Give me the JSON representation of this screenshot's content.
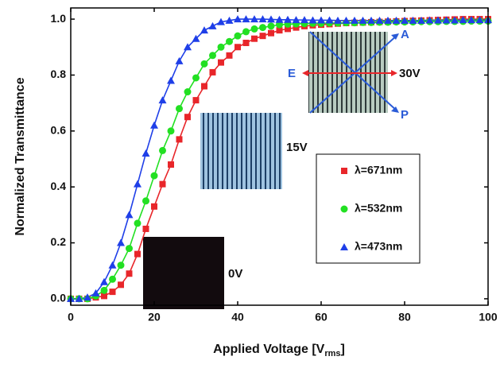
{
  "chart_data": {
    "type": "scatter",
    "x_label": {
      "main": "Applied Voltage [V",
      "sub": "rms",
      "end": "]"
    },
    "y_label": "Normalized Transmittance",
    "x": [
      0,
      2,
      4,
      6,
      8,
      10,
      12,
      14,
      16,
      18,
      20,
      22,
      24,
      26,
      28,
      30,
      32,
      34,
      36,
      38,
      40,
      42,
      44,
      46,
      48,
      50,
      52,
      54,
      56,
      58,
      60,
      62,
      64,
      66,
      68,
      70,
      72,
      74,
      76,
      78,
      80,
      82,
      84,
      86,
      88,
      90,
      92,
      94,
      96,
      98,
      100
    ],
    "series": [
      {
        "name": "λ=671nm",
        "color": "#e8262a",
        "marker": "square",
        "values": [
          0,
          0,
          0,
          0.005,
          0.01,
          0.025,
          0.05,
          0.09,
          0.16,
          0.25,
          0.33,
          0.41,
          0.48,
          0.57,
          0.65,
          0.71,
          0.76,
          0.81,
          0.845,
          0.87,
          0.9,
          0.915,
          0.93,
          0.94,
          0.95,
          0.96,
          0.965,
          0.97,
          0.975,
          0.978,
          0.98,
          0.982,
          0.984,
          0.986,
          0.987,
          0.988,
          0.989,
          0.99,
          0.991,
          0.992,
          0.993,
          0.994,
          0.995,
          0.996,
          0.997,
          0.998,
          0.999,
          1.0,
          1.0,
          1.0,
          1.0
        ]
      },
      {
        "name": "λ=532nm",
        "color": "#22e022",
        "marker": "circle",
        "values": [
          0,
          0,
          0,
          0.01,
          0.03,
          0.07,
          0.12,
          0.18,
          0.27,
          0.35,
          0.44,
          0.53,
          0.6,
          0.68,
          0.74,
          0.79,
          0.84,
          0.87,
          0.9,
          0.92,
          0.94,
          0.955,
          0.965,
          0.97,
          0.975,
          0.98,
          0.982,
          0.983,
          0.984,
          0.985,
          0.985,
          0.986,
          0.986,
          0.987,
          0.987,
          0.988,
          0.988,
          0.989,
          0.989,
          0.99,
          0.99,
          0.99,
          0.991,
          0.991,
          0.991,
          0.992,
          0.992,
          0.992,
          0.993,
          0.993,
          0.993
        ]
      },
      {
        "name": "λ=473nm",
        "color": "#1f3fe8",
        "marker": "triangle",
        "values": [
          0,
          0,
          0.005,
          0.02,
          0.06,
          0.12,
          0.2,
          0.3,
          0.41,
          0.52,
          0.62,
          0.71,
          0.78,
          0.85,
          0.9,
          0.93,
          0.96,
          0.975,
          0.99,
          0.995,
          1.0,
          1.0,
          1.0,
          1.0,
          0.999,
          0.998,
          0.998,
          0.997,
          0.997,
          0.996,
          0.996,
          0.996,
          0.995,
          0.995,
          0.995,
          0.995,
          0.995,
          0.995,
          0.995,
          0.995,
          0.995,
          0.995,
          0.995,
          0.996,
          0.996,
          0.996,
          0.996,
          0.997,
          0.997,
          0.997,
          0.997
        ]
      }
    ],
    "xlim": [
      0,
      100
    ],
    "xticks": [
      0,
      20,
      40,
      60,
      80,
      100
    ],
    "ylim": [
      -0.023,
      1.04
    ],
    "yticks": [
      {
        "value": 0,
        "label": "0.0"
      },
      {
        "value": 0.2,
        "label": "0.2"
      },
      {
        "value": 0.4,
        "label": "0.4"
      },
      {
        "value": 0.6,
        "label": "0.6"
      },
      {
        "value": 0.8,
        "label": "0.8"
      },
      {
        "value": 1,
        "label": "1.0"
      }
    ],
    "legend": "right",
    "annotations": {
      "v0": "0V",
      "v15": "15V",
      "v30": "30V",
      "e": "E",
      "a": "A",
      "p": "P"
    }
  }
}
